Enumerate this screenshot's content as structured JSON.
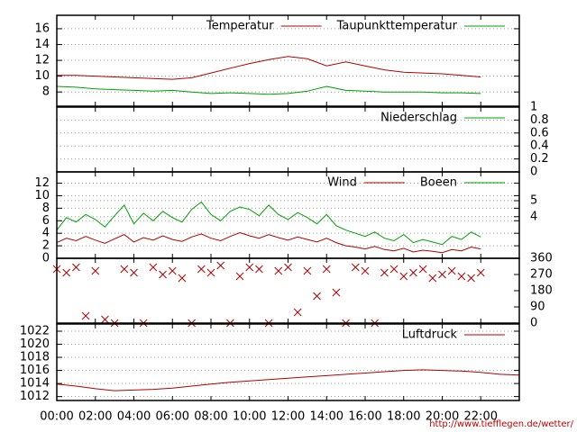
{
  "chart_data": [
    {
      "type": "line",
      "xlim": [
        0,
        24
      ],
      "ylim": [
        6.2,
        17.7
      ],
      "yticks": [
        8,
        10,
        12,
        14,
        16
      ],
      "grid": true,
      "x": [
        0,
        1,
        2,
        3,
        4,
        5,
        6,
        7,
        8,
        9,
        10,
        11,
        12,
        13,
        14,
        15,
        16,
        17,
        18,
        19,
        20,
        21,
        22
      ],
      "series": [
        {
          "name": "Temperatur",
          "color": "#b00000",
          "values": [
            10.1,
            10.1,
            10.0,
            9.9,
            9.8,
            9.7,
            9.6,
            9.8,
            10.4,
            11.0,
            11.6,
            12.1,
            12.5,
            12.2,
            11.3,
            11.8,
            11.3,
            10.8,
            10.5,
            10.4,
            10.3,
            10.1,
            9.9
          ]
        },
        {
          "name": "Taupunkttemperatur",
          "color": "#00a000",
          "values": [
            8.7,
            8.6,
            8.4,
            8.3,
            8.2,
            8.1,
            8.2,
            8.0,
            7.8,
            7.9,
            7.8,
            7.7,
            7.8,
            8.1,
            8.7,
            8.2,
            8.1,
            8.0,
            8.0,
            8.0,
            7.9,
            7.9,
            7.8
          ]
        }
      ]
    },
    {
      "type": "line",
      "xlim": [
        0,
        24
      ],
      "y2lim": [
        0,
        1
      ],
      "y2ticks": [
        0,
        0.2,
        0.4,
        0.6,
        0.8,
        1
      ],
      "grid": true,
      "x": [
        0,
        24
      ],
      "series": [
        {
          "name": "Niederschlag",
          "color": "#00a000",
          "axis": "y2",
          "values": [
            0,
            0
          ]
        }
      ]
    },
    {
      "type": "line",
      "xlim": [
        0,
        24
      ],
      "ylim": [
        0,
        13.8
      ],
      "yticks": [
        0,
        2,
        4,
        6,
        8,
        10,
        12
      ],
      "y2lim": [
        1.4,
        6.8
      ],
      "y2ticks": [
        4,
        5
      ],
      "grid": true,
      "x": [
        0,
        0.5,
        1,
        1.5,
        2,
        2.5,
        3,
        3.5,
        4,
        4.5,
        5,
        5.5,
        6,
        6.5,
        7,
        7.5,
        8,
        8.5,
        9,
        9.5,
        10,
        10.5,
        11,
        11.5,
        12,
        12.5,
        13,
        13.5,
        14,
        14.5,
        15,
        15.5,
        16,
        16.5,
        17,
        17.5,
        18,
        18.5,
        19,
        19.5,
        20,
        20.5,
        21,
        21.5,
        22
      ],
      "series": [
        {
          "name": "Wind",
          "color": "#b00000",
          "values": [
            2.5,
            3.2,
            2.8,
            3.5,
            2.9,
            2.4,
            3.1,
            3.8,
            2.6,
            3.3,
            2.9,
            3.6,
            3.0,
            2.7,
            3.4,
            3.9,
            3.2,
            2.8,
            3.5,
            4.1,
            3.6,
            3.2,
            3.8,
            3.3,
            2.9,
            3.4,
            3.0,
            2.6,
            3.2,
            2.5,
            2.0,
            1.8,
            1.5,
            1.9,
            1.4,
            1.2,
            1.6,
            1.0,
            1.3,
            1.1,
            0.9,
            1.4,
            1.2,
            1.8,
            1.5
          ]
        },
        {
          "name": "Boeen",
          "color": "#00a000",
          "values": [
            4.5,
            6.5,
            5.8,
            7.0,
            6.2,
            5.0,
            6.8,
            8.5,
            5.5,
            7.2,
            6.0,
            7.5,
            6.5,
            5.8,
            7.8,
            9.0,
            7.0,
            6.0,
            7.5,
            8.2,
            7.8,
            6.8,
            8.5,
            7.0,
            6.2,
            7.3,
            6.5,
            5.5,
            7.0,
            5.2,
            4.5,
            4.0,
            3.5,
            4.2,
            3.2,
            2.8,
            3.8,
            2.5,
            3.0,
            2.6,
            2.2,
            3.5,
            3.0,
            4.2,
            3.4
          ]
        }
      ]
    },
    {
      "type": "scatter",
      "xlim": [
        0,
        24
      ],
      "y2lim": [
        0,
        360
      ],
      "y2ticks": [
        0,
        90,
        180,
        270,
        360
      ],
      "grid": false,
      "x": [
        0,
        0.5,
        1,
        1.5,
        2,
        2.5,
        3,
        3.5,
        4,
        4.5,
        5,
        5.5,
        6,
        6.5,
        7,
        7.5,
        8,
        8.5,
        9,
        9.5,
        10,
        10.5,
        11,
        11.5,
        12,
        12.5,
        13,
        13.5,
        14,
        14.5,
        15,
        15.5,
        16,
        16.5,
        17,
        17.5,
        18,
        18.5,
        19,
        19.5,
        20,
        20.5,
        21,
        21.5,
        22
      ],
      "series": [
        {
          "color": "#b00000",
          "axis": "y2",
          "values": [
            300,
            280,
            310,
            40,
            290,
            20,
            0,
            300,
            280,
            0,
            310,
            270,
            290,
            250,
            0,
            300,
            280,
            320,
            0,
            260,
            310,
            300,
            0,
            290,
            310,
            60,
            290,
            150,
            300,
            170,
            0,
            310,
            290,
            0,
            280,
            300,
            260,
            280,
            300,
            250,
            270,
            290,
            260,
            250,
            280
          ]
        }
      ]
    },
    {
      "type": "line",
      "xlim": [
        0,
        24
      ],
      "ylim": [
        1011.4,
        1023.1
      ],
      "yticks": [
        1012,
        1014,
        1016,
        1018,
        1020,
        1022
      ],
      "grid": true,
      "xticks": [
        {
          "value": 0,
          "label": "00:00"
        },
        {
          "value": 2,
          "label": "02:00"
        },
        {
          "value": 4,
          "label": "04:00"
        },
        {
          "value": 6,
          "label": "06:00"
        },
        {
          "value": 8,
          "label": "08:00"
        },
        {
          "value": 10,
          "label": "10:00"
        },
        {
          "value": 12,
          "label": "12:00"
        },
        {
          "value": 14,
          "label": "14:00"
        },
        {
          "value": 16,
          "label": "16:00"
        },
        {
          "value": 18,
          "label": "18:00"
        },
        {
          "value": 20,
          "label": "20:00"
        },
        {
          "value": 22,
          "label": "22:00"
        }
      ],
      "x": [
        0,
        1,
        2,
        3,
        4,
        5,
        6,
        7,
        8,
        9,
        10,
        11,
        12,
        13,
        14,
        15,
        16,
        17,
        18,
        19,
        20,
        21,
        22,
        23,
        24
      ],
      "series": [
        {
          "name": "Luftdruck",
          "color": "#b00000",
          "values": [
            1013.9,
            1013.6,
            1013.2,
            1012.9,
            1013.0,
            1013.1,
            1013.3,
            1013.6,
            1013.9,
            1014.2,
            1014.4,
            1014.6,
            1014.8,
            1015.0,
            1015.2,
            1015.4,
            1015.6,
            1015.8,
            1016.0,
            1016.1,
            1016.0,
            1015.9,
            1015.7,
            1015.4,
            1015.3
          ]
        }
      ],
      "source": "http://www.tiefflegen.de/wetter/"
    }
  ]
}
